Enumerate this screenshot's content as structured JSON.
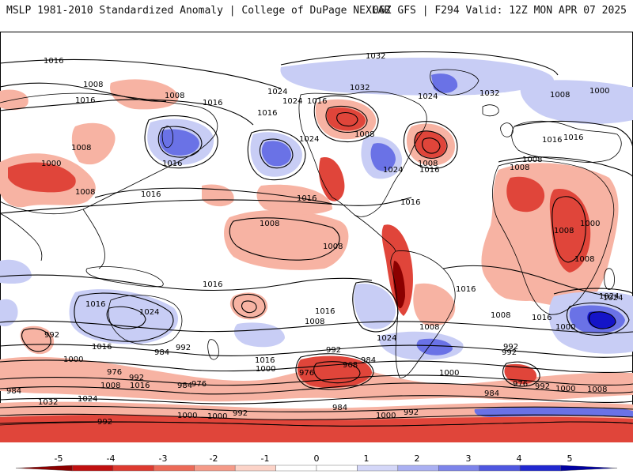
{
  "header": {
    "left": "MSLP 1981-2010 Standardized Anomaly | College of DuPage NEXLAB",
    "right": "06Z GFS | F294 Valid: 12Z MON APR 07 2025"
  },
  "colors": {
    "neg_strong": "#8b0000",
    "neg_med": "#e0453a",
    "neg_light": "#f7b3a3",
    "pos_light": "#c8cdf5",
    "pos_med": "#6a72e6",
    "pos_strong": "#1414c8",
    "contour": "#000000",
    "coast": "#000000"
  },
  "legend": {
    "ticks": [
      "-5",
      "-4",
      "-3",
      "-2",
      "-1",
      "0",
      "1",
      "2",
      "3",
      "4",
      "5"
    ],
    "colors": [
      "#8b0000",
      "#c01010",
      "#dd3a30",
      "#ec6a58",
      "#f59a88",
      "#fcd3c8",
      "#ffffff",
      "#ffffff",
      "#d4d7f8",
      "#aab0f2",
      "#7d84ea",
      "#4f57e0",
      "#2128d0",
      "#0000a0"
    ]
  },
  "contour_labels": [
    {
      "text": "1016"
    },
    {
      "text": "1032"
    },
    {
      "text": "1008"
    },
    {
      "text": "1016"
    },
    {
      "text": "1008"
    },
    {
      "text": "1024"
    },
    {
      "text": "1016"
    },
    {
      "text": "1024"
    },
    {
      "text": "1016"
    },
    {
      "text": "1032"
    },
    {
      "text": "1024"
    },
    {
      "text": "1032"
    },
    {
      "text": "1008"
    },
    {
      "text": "1000"
    },
    {
      "text": "1016"
    },
    {
      "text": "1008"
    },
    {
      "text": "1016"
    },
    {
      "text": "1008"
    },
    {
      "text": "1008"
    },
    {
      "text": "1024"
    },
    {
      "text": "1016"
    },
    {
      "text": "1000"
    },
    {
      "text": "1008"
    },
    {
      "text": "1016"
    },
    {
      "text": "1024"
    },
    {
      "text": "1008"
    },
    {
      "text": "1016"
    },
    {
      "text": "1008"
    },
    {
      "text": "1016"
    },
    {
      "text": "1016"
    },
    {
      "text": "1016"
    },
    {
      "text": "1008"
    },
    {
      "text": "1008"
    },
    {
      "text": "1000"
    },
    {
      "text": "1008"
    },
    {
      "text": "1008"
    },
    {
      "text": "1016"
    },
    {
      "text": "1016"
    },
    {
      "text": "1024"
    },
    {
      "text": "1016"
    },
    {
      "text": "1024"
    },
    {
      "text": "1008"
    },
    {
      "text": "1016"
    },
    {
      "text": "1008"
    },
    {
      "text": "1008"
    },
    {
      "text": "1016"
    },
    {
      "text": "1024"
    },
    {
      "text": "992"
    },
    {
      "text": "1016"
    },
    {
      "text": "1000"
    },
    {
      "text": "992"
    },
    {
      "text": "984"
    },
    {
      "text": "1016"
    },
    {
      "text": "1000"
    },
    {
      "text": "992"
    },
    {
      "text": "1024"
    },
    {
      "text": "992"
    },
    {
      "text": "1000"
    },
    {
      "text": "976"
    },
    {
      "text": "968"
    },
    {
      "text": "984"
    },
    {
      "text": "976"
    },
    {
      "text": "992"
    },
    {
      "text": "1008"
    },
    {
      "text": "1016"
    },
    {
      "text": "984"
    },
    {
      "text": "976"
    },
    {
      "text": "984"
    },
    {
      "text": "1032"
    },
    {
      "text": "1024"
    },
    {
      "text": "984"
    },
    {
      "text": "1000"
    },
    {
      "text": "976"
    },
    {
      "text": "992"
    },
    {
      "text": "1000"
    },
    {
      "text": "1008"
    },
    {
      "text": "1000"
    },
    {
      "text": "1000"
    },
    {
      "text": "992"
    },
    {
      "text": "992"
    },
    {
      "text": "984"
    },
    {
      "text": "992"
    },
    {
      "text": "1000"
    },
    {
      "text": "992"
    }
  ]
}
